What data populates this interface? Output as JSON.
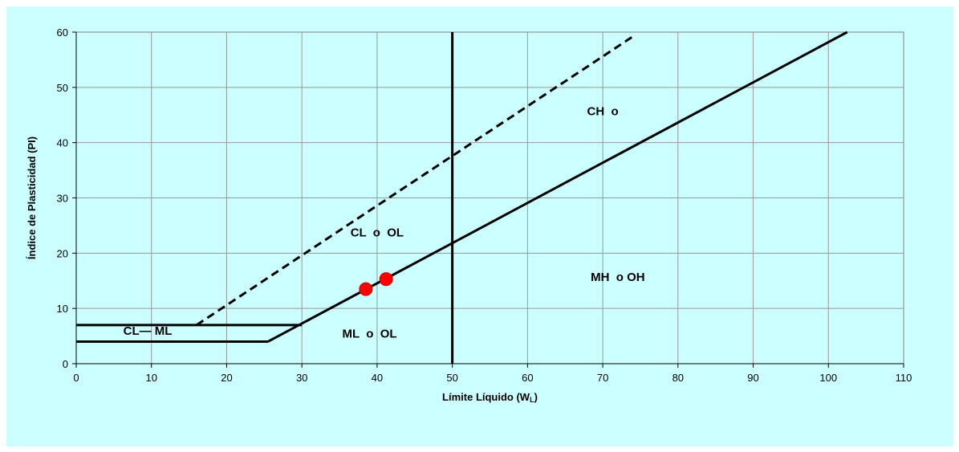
{
  "chart_data": {
    "type": "line",
    "title": "",
    "xlabel": "Límite Líquido (W",
    "xlabel_subscript": "L",
    "xlabel_close": ")",
    "ylabel": "Índice de Plasticidad (PI)",
    "xlim": [
      0,
      110
    ],
    "ylim": [
      0,
      60
    ],
    "x_ticks": [
      0,
      10,
      20,
      30,
      40,
      50,
      60,
      70,
      80,
      90,
      100,
      110
    ],
    "y_ticks": [
      0,
      10,
      20,
      30,
      40,
      50,
      60
    ],
    "grid": true,
    "legend": "none",
    "lines": [
      {
        "id": "a-line",
        "style": "solid",
        "points": [
          [
            25.5,
            4
          ],
          [
            102.5,
            60
          ]
        ]
      },
      {
        "id": "u-line",
        "style": "dashed",
        "points": [
          [
            16,
            7
          ],
          [
            74,
            59.2
          ]
        ]
      },
      {
        "id": "liquid-limit-50",
        "style": "solid",
        "points": [
          [
            50,
            0
          ],
          [
            50,
            60
          ]
        ]
      },
      {
        "id": "pi-7-line",
        "style": "solid",
        "points": [
          [
            0,
            7
          ],
          [
            30,
            7
          ]
        ]
      },
      {
        "id": "pi-4-line",
        "style": "solid",
        "points": [
          [
            0,
            4
          ],
          [
            25.5,
            4
          ]
        ]
      }
    ],
    "points": [
      {
        "x": 38.5,
        "y": 13.5,
        "color": "#ff0000"
      },
      {
        "x": 41.2,
        "y": 15.3,
        "color": "#ff0000"
      }
    ],
    "annotations": [
      {
        "text": "CH  o",
        "x": 70,
        "y": 45
      },
      {
        "text": "CL  o  OL",
        "x": 40,
        "y": 23
      },
      {
        "text": "MH  o OH",
        "x": 72,
        "y": 15
      },
      {
        "text": "ML  o  OL",
        "x": 39,
        "y": 4.7
      },
      {
        "text": "CL— ML",
        "x": 9.5,
        "y": 5.2
      }
    ]
  },
  "colors": {
    "panel_background": "#ccffff",
    "plot_background": "#ccffff",
    "grid": "#999999",
    "line": "#000000",
    "point": "#ff0000"
  }
}
